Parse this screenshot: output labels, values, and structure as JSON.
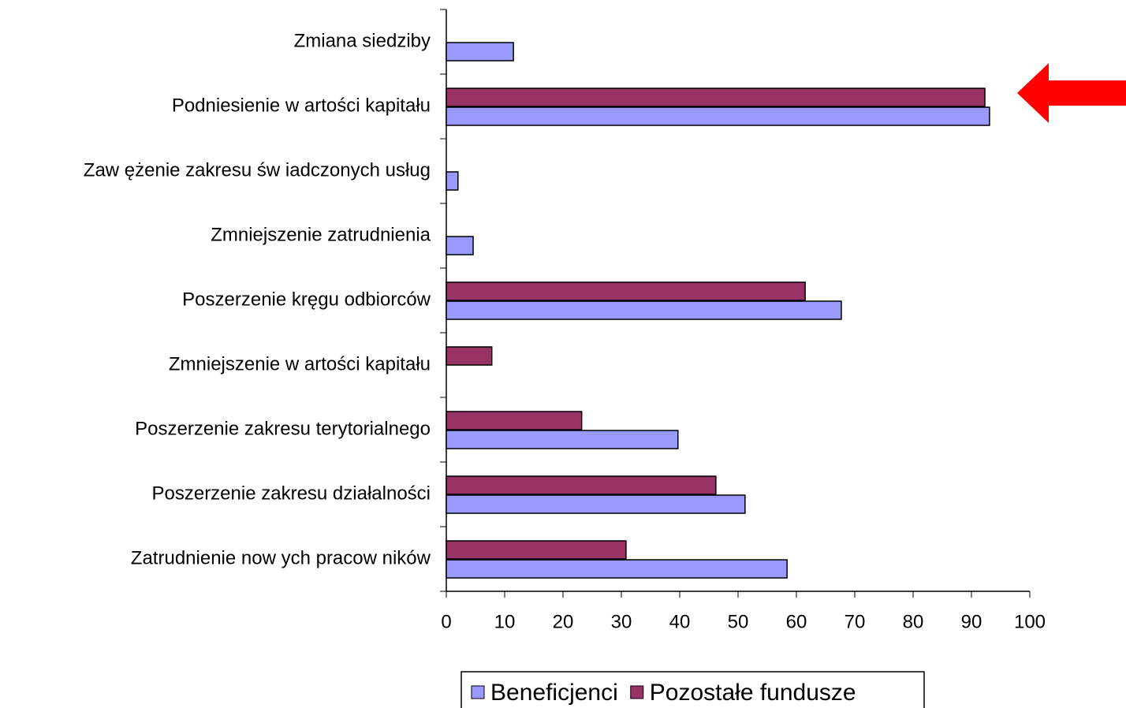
{
  "chart_data": {
    "type": "hbar",
    "categories": [
      "Zmiana siedziby",
      "Podniesienie w artości kapitału",
      "Zaw ężenie zakresu św iadczonych usług",
      "Zmniejszenie zatrudnienia",
      "Poszerzenie kręgu odbiorców",
      "Zmniejszenie w artości kapitału",
      "Poszerzenie zakresu terytorialnego",
      "Poszerzenie zakresu działalności",
      "Zatrudnienie now ych pracow ników"
    ],
    "series": [
      {
        "name": "Beneficjenci",
        "color": "#9999ff",
        "values": [
          11.5,
          93.1,
          2.0,
          4.6,
          67.7,
          null,
          39.7,
          51.2,
          58.4
        ]
      },
      {
        "name": "Pozostałe fundusze",
        "color": "#993366",
        "values": [
          null,
          92.3,
          null,
          null,
          61.5,
          7.8,
          23.2,
          46.2,
          30.8
        ]
      }
    ],
    "xlim": [
      0,
      100
    ],
    "xticks": [
      0,
      10,
      20,
      30,
      40,
      50,
      60,
      70,
      80,
      90,
      100
    ]
  }
}
